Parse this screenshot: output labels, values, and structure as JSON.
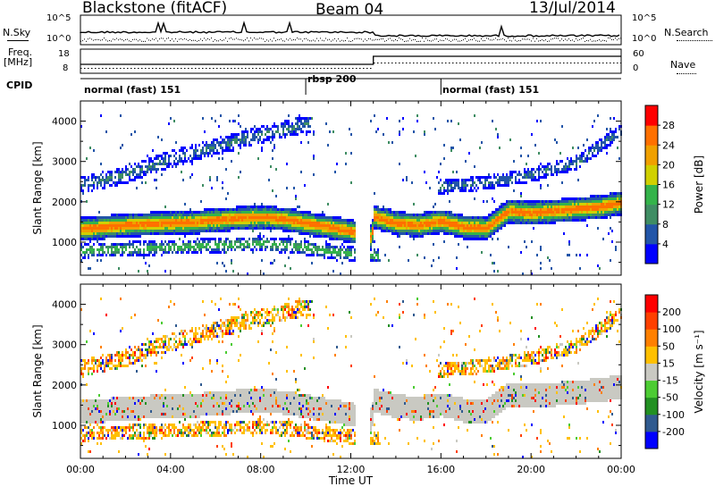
{
  "header": {
    "station": "Blackstone (fitACF)",
    "beam": "Beam 04",
    "date": "13/Jul/2014"
  },
  "top_panels": {
    "nsky_label": "N.Sky",
    "nsearch_label": "N.Search",
    "noise_ticks": [
      "10^5",
      "10^0"
    ],
    "freq_label_line1": "Freq.",
    "freq_label_line2": "[MHz]",
    "freq_ticks": [
      "18",
      "8"
    ],
    "nave_label": "Nave",
    "nave_ticks": [
      "60",
      "0"
    ],
    "cpid_label": "CPID"
  },
  "cpid_segments": [
    {
      "label": "normal (fast) 151",
      "start_hour": 0
    },
    {
      "label": "rbsp 200",
      "start_hour": 10
    },
    {
      "label": "normal (fast) 151",
      "start_hour": 16
    }
  ],
  "colors": {
    "power_scale": [
      "#0000ff",
      "#2255a8",
      "#3f8d63",
      "#34b34a",
      "#d0d000",
      "#f0a000",
      "#ff7000",
      "#ff0000"
    ],
    "velocity_scale": [
      "#0000ff",
      "#305a8f",
      "#229022",
      "#4ccc33",
      "#c9c9c2",
      "#ffc000",
      "#ff8000",
      "#ff4000",
      "#ff0000"
    ]
  },
  "chart_data": [
    {
      "type": "heatmap",
      "panel": "power",
      "ylabel": "Slant Range [km]",
      "y_ticks": [
        1000,
        2000,
        3000,
        4000
      ],
      "ylim": [
        180,
        4500
      ],
      "xlim": [
        0,
        24
      ],
      "colorbar_label": "Power [dB]",
      "colorbar_ticks": [
        28,
        24,
        20,
        16,
        12,
        8,
        4
      ],
      "clim": [
        0,
        32
      ],
      "bands": [
        {
          "name": "main echo",
          "x": [
            0,
            1,
            2,
            3,
            4,
            5,
            6,
            7,
            8,
            9,
            10,
            11,
            12,
            12.9,
            13,
            14,
            15,
            16,
            17,
            18,
            19,
            20,
            21,
            22,
            23,
            24
          ],
          "y_center": [
            1350,
            1400,
            1450,
            1480,
            1500,
            1520,
            1580,
            1620,
            1650,
            1600,
            1500,
            1400,
            1300,
            1150,
            1650,
            1500,
            1450,
            1550,
            1400,
            1380,
            1800,
            1750,
            1800,
            1850,
            1900,
            2000
          ],
          "width_km": 420,
          "peak_db": 26
        },
        {
          "name": "secondary",
          "x": [
            0,
            2,
            4,
            6,
            8,
            10,
            11,
            12,
            13
          ],
          "y_center": [
            820,
            860,
            900,
            950,
            1000,
            900,
            800,
            750,
            700
          ],
          "width_km": 260,
          "peak_db": 14
        },
        {
          "name": "upper",
          "x": [
            0,
            2,
            4,
            6,
            8,
            10
          ],
          "y_center": [
            2450,
            2700,
            3100,
            3400,
            3700,
            3950
          ],
          "width_km": 300,
          "peak_db": 8
        },
        {
          "name": "late",
          "x": [
            16,
            18,
            20,
            22,
            24
          ],
          "y_center": [
            2400,
            2500,
            2700,
            3000,
            3800
          ],
          "width_km": 250,
          "peak_db": 8
        }
      ]
    },
    {
      "type": "heatmap",
      "panel": "velocity",
      "ylabel": "Slant Range [km]",
      "y_ticks": [
        1000,
        2000,
        3000,
        4000
      ],
      "ylim": [
        180,
        4500
      ],
      "xlim": [
        0,
        24
      ],
      "xlabel": "Time UT",
      "x_ticks": [
        "00:00",
        "04:00",
        "08:00",
        "12:00",
        "16:00",
        "20:00",
        "00:00"
      ],
      "colorbar_label": "Velocity [m s⁻¹]",
      "colorbar_ticks": [
        200,
        100,
        50,
        15,
        -15,
        -50,
        -100,
        -200
      ],
      "clim": [
        -250,
        250
      ]
    }
  ]
}
